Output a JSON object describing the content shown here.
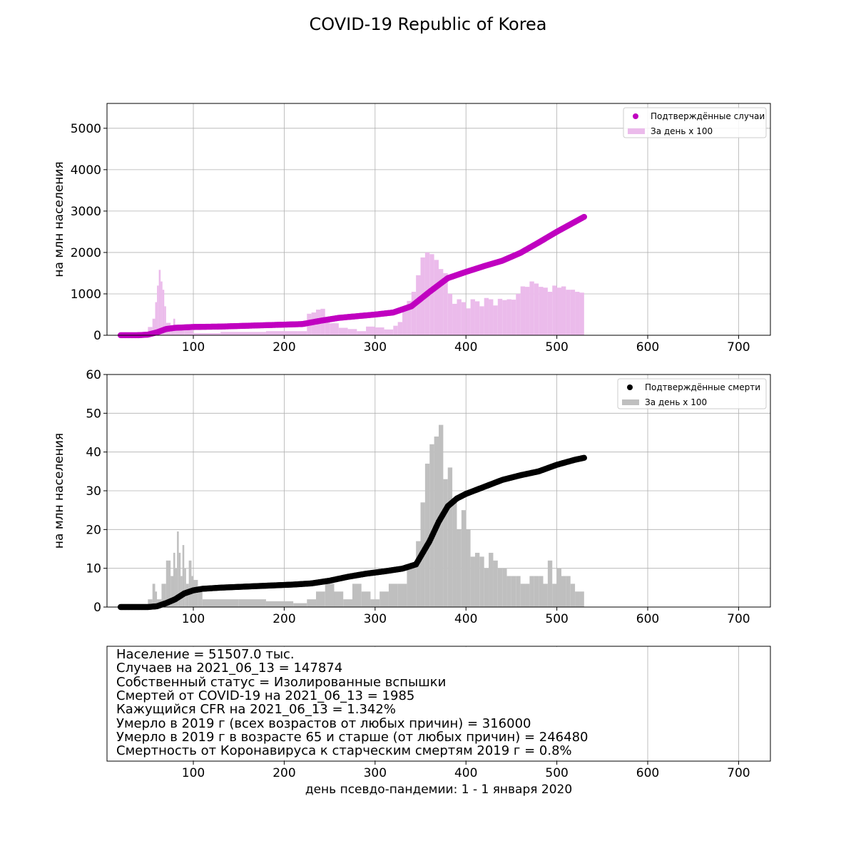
{
  "title": "COVID-19 Republic of Korea",
  "xlabel": "день псевдо-пандемии: 1 - 1 января 2020",
  "info_lines": [
    "Население = 51507.0 тыс.",
    "Случаев на 2021_06_13 = 147874",
    "Собственный статус = Изолированные вспышки",
    "Смертей от COVID-19 на 2021_06_13 = 1985",
    "Кажущийся CFR на 2021_06_13 = 1.342%",
    "Умерло в 2019 г (всех возрастов от любых причин) = 316000",
    "Умерло в 2019 г в возрасте 65 и старше (от любых причин) = 246480",
    "Смертность от Коронавируса к старческим смертям 2019 г = 0.8%"
  ],
  "colors": {
    "cases_cumulative": "#c000c0",
    "cases_daily": "#ebbbeb",
    "deaths_cumulative": "#000000",
    "deaths_daily": "#bfbfbf",
    "grid": "#b0b0b0"
  },
  "chart_data": [
    {
      "type": "scatter+bar",
      "ylabel": "на млн населения",
      "xlim": [
        5,
        735
      ],
      "ylim": [
        0,
        5600
      ],
      "xticks": [
        100,
        200,
        300,
        400,
        500,
        600,
        700
      ],
      "yticks": [
        0,
        1000,
        2000,
        3000,
        4000,
        5000
      ],
      "grid": true,
      "legend_position": "top-right",
      "series": [
        {
          "name": "Подтверждённые случаи",
          "type": "scatter",
          "x": [
            20,
            40,
            50,
            60,
            70,
            80,
            100,
            130,
            160,
            190,
            220,
            240,
            260,
            280,
            300,
            320,
            340,
            360,
            380,
            400,
            420,
            440,
            460,
            480,
            500,
            520,
            530
          ],
          "values": [
            1,
            2,
            15,
            70,
            150,
            180,
            200,
            210,
            230,
            250,
            270,
            350,
            420,
            460,
            500,
            550,
            700,
            1050,
            1380,
            1530,
            1670,
            1800,
            1990,
            2240,
            2500,
            2740,
            2860
          ]
        },
        {
          "name": "За день x 100",
          "type": "bar",
          "bins": [
            [
              20,
              40,
              0
            ],
            [
              40,
              50,
              50
            ],
            [
              50,
              55,
              200
            ],
            [
              55,
              58,
              400
            ],
            [
              58,
              60,
              800
            ],
            [
              60,
              62,
              1200
            ],
            [
              62,
              64,
              1580
            ],
            [
              64,
              66,
              1300
            ],
            [
              66,
              68,
              1100
            ],
            [
              68,
              70,
              700
            ],
            [
              70,
              75,
              300
            ],
            [
              75,
              78,
              200
            ],
            [
              78,
              80,
              400
            ],
            [
              80,
              90,
              150
            ],
            [
              90,
              100,
              120
            ],
            [
              100,
              130,
              50
            ],
            [
              130,
              180,
              80
            ],
            [
              180,
              215,
              100
            ],
            [
              215,
              225,
              100
            ],
            [
              225,
              230,
              520
            ],
            [
              230,
              235,
              550
            ],
            [
              235,
              240,
              620
            ],
            [
              240,
              245,
              640
            ],
            [
              245,
              250,
              430
            ],
            [
              250,
              260,
              290
            ],
            [
              260,
              270,
              180
            ],
            [
              270,
              280,
              150
            ],
            [
              280,
              290,
              100
            ],
            [
              290,
              300,
              210
            ],
            [
              300,
              310,
              190
            ],
            [
              310,
              320,
              140
            ],
            [
              320,
              325,
              230
            ],
            [
              325,
              330,
              320
            ],
            [
              330,
              335,
              600
            ],
            [
              335,
              340,
              830
            ],
            [
              340,
              345,
              1050
            ],
            [
              345,
              350,
              1450
            ],
            [
              350,
              355,
              1880
            ],
            [
              355,
              360,
              2000
            ],
            [
              360,
              365,
              1960
            ],
            [
              365,
              370,
              1820
            ],
            [
              370,
              375,
              1600
            ],
            [
              375,
              380,
              1500
            ],
            [
              380,
              385,
              1000
            ],
            [
              385,
              390,
              760
            ],
            [
              390,
              395,
              870
            ],
            [
              395,
              400,
              800
            ],
            [
              400,
              405,
              650
            ],
            [
              405,
              410,
              870
            ],
            [
              410,
              415,
              820
            ],
            [
              415,
              420,
              700
            ],
            [
              420,
              425,
              900
            ],
            [
              425,
              430,
              870
            ],
            [
              430,
              435,
              720
            ],
            [
              435,
              440,
              880
            ],
            [
              440,
              445,
              850
            ],
            [
              445,
              450,
              870
            ],
            [
              450,
              455,
              860
            ],
            [
              455,
              460,
              1000
            ],
            [
              460,
              465,
              1180
            ],
            [
              465,
              470,
              1170
            ],
            [
              470,
              475,
              1300
            ],
            [
              475,
              480,
              1250
            ],
            [
              480,
              485,
              1170
            ],
            [
              485,
              490,
              1150
            ],
            [
              490,
              495,
              1050
            ],
            [
              495,
              500,
              1200
            ],
            [
              500,
              505,
              1150
            ],
            [
              505,
              510,
              1180
            ],
            [
              510,
              515,
              1100
            ],
            [
              515,
              520,
              1100
            ],
            [
              520,
              525,
              1050
            ],
            [
              525,
              530,
              1030
            ]
          ]
        }
      ]
    },
    {
      "type": "scatter+bar",
      "ylabel": "на млн населения",
      "xlim": [
        5,
        735
      ],
      "ylim": [
        0,
        60
      ],
      "xticks": [
        100,
        200,
        300,
        400,
        500,
        600,
        700
      ],
      "yticks": [
        0,
        10,
        20,
        30,
        40,
        50,
        60
      ],
      "grid": true,
      "legend_position": "top-right",
      "series": [
        {
          "name": "Подтверждённые смерти",
          "type": "scatter",
          "x": [
            20,
            40,
            50,
            60,
            70,
            80,
            90,
            100,
            110,
            130,
            150,
            170,
            190,
            210,
            230,
            250,
            270,
            290,
            310,
            330,
            345,
            350,
            360,
            370,
            380,
            390,
            400,
            420,
            440,
            460,
            480,
            500,
            520,
            530
          ],
          "values": [
            0,
            0,
            0,
            0.2,
            1,
            2,
            3.5,
            4.3,
            4.7,
            5,
            5.2,
            5.4,
            5.6,
            5.8,
            6.1,
            6.8,
            7.8,
            8.6,
            9.2,
            9.9,
            11,
            13,
            17,
            22,
            26,
            28,
            29.2,
            31,
            32.8,
            34,
            35,
            36.7,
            38,
            38.5
          ]
        },
        {
          "name": "За день x 100",
          "type": "bar",
          "bins": [
            [
              20,
              50,
              0
            ],
            [
              50,
              55,
              2
            ],
            [
              55,
              58,
              6
            ],
            [
              58,
              60,
              4
            ],
            [
              60,
              65,
              2
            ],
            [
              65,
              70,
              6
            ],
            [
              70,
              75,
              12
            ],
            [
              75,
              78,
              8
            ],
            [
              78,
              80,
              14
            ],
            [
              80,
              82,
              10
            ],
            [
              82,
              84,
              19.5
            ],
            [
              84,
              86,
              14
            ],
            [
              86,
              88,
              8
            ],
            [
              88,
              90,
              16
            ],
            [
              90,
              92,
              10
            ],
            [
              92,
              95,
              6
            ],
            [
              95,
              98,
              12
            ],
            [
              98,
              100,
              8
            ],
            [
              100,
              105,
              7
            ],
            [
              105,
              110,
              4
            ],
            [
              110,
              120,
              2
            ],
            [
              120,
              150,
              2
            ],
            [
              150,
              180,
              2
            ],
            [
              180,
              210,
              1.5
            ],
            [
              210,
              225,
              1
            ],
            [
              225,
              235,
              2
            ],
            [
              235,
              245,
              4
            ],
            [
              245,
              255,
              6
            ],
            [
              255,
              265,
              4
            ],
            [
              265,
              275,
              2
            ],
            [
              275,
              285,
              6
            ],
            [
              285,
              295,
              4
            ],
            [
              295,
              305,
              2
            ],
            [
              305,
              315,
              4
            ],
            [
              315,
              325,
              6
            ],
            [
              325,
              335,
              6
            ],
            [
              335,
              345,
              10
            ],
            [
              345,
              350,
              17
            ],
            [
              350,
              355,
              27
            ],
            [
              355,
              360,
              37
            ],
            [
              360,
              365,
              42
            ],
            [
              365,
              370,
              44
            ],
            [
              370,
              375,
              47
            ],
            [
              375,
              380,
              33
            ],
            [
              380,
              385,
              36
            ],
            [
              385,
              390,
              28
            ],
            [
              390,
              395,
              20
            ],
            [
              395,
              400,
              25
            ],
            [
              400,
              405,
              20
            ],
            [
              405,
              410,
              13
            ],
            [
              410,
              415,
              14
            ],
            [
              415,
              420,
              13
            ],
            [
              420,
              425,
              10
            ],
            [
              425,
              430,
              14
            ],
            [
              430,
              435,
              12
            ],
            [
              435,
              440,
              10
            ],
            [
              440,
              445,
              10
            ],
            [
              445,
              450,
              8
            ],
            [
              450,
              455,
              8
            ],
            [
              455,
              460,
              8
            ],
            [
              460,
              465,
              6
            ],
            [
              465,
              470,
              6
            ],
            [
              470,
              475,
              8
            ],
            [
              475,
              480,
              8
            ],
            [
              480,
              485,
              8
            ],
            [
              485,
              490,
              6
            ],
            [
              490,
              495,
              12
            ],
            [
              495,
              500,
              6
            ],
            [
              500,
              505,
              10
            ],
            [
              505,
              510,
              8
            ],
            [
              510,
              515,
              8
            ],
            [
              515,
              520,
              6
            ],
            [
              520,
              525,
              4
            ],
            [
              525,
              530,
              4
            ]
          ]
        }
      ]
    }
  ],
  "info_axis": {
    "xlim": [
      5,
      735
    ],
    "xticks": [
      100,
      200,
      300,
      400,
      500,
      600,
      700
    ],
    "grid": true
  }
}
